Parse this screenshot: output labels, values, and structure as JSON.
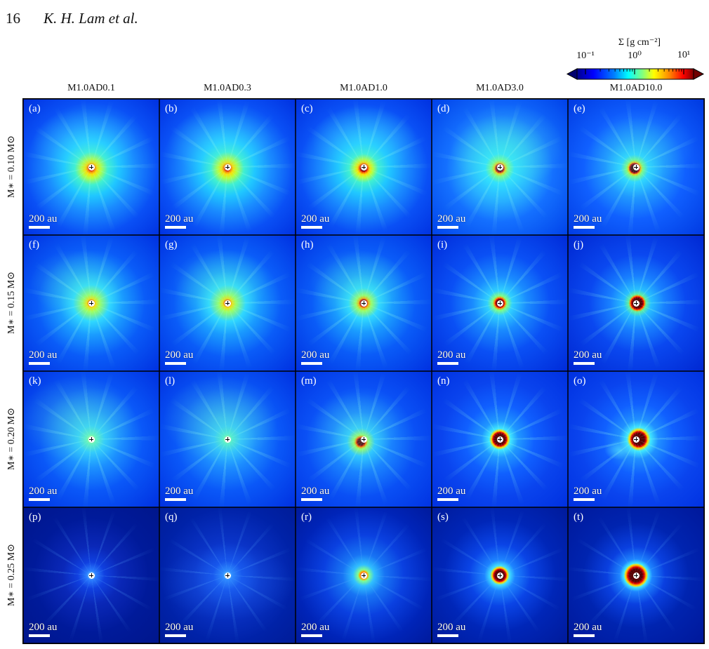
{
  "header": {
    "page_number": "16",
    "authors": "K. H. Lam et al."
  },
  "colorbar": {
    "label": "Σ [g cm⁻²]",
    "ticks": [
      "10⁻¹",
      "10⁰",
      "10¹"
    ],
    "scale": "log",
    "colormap": "jet",
    "colors": {
      "low_extend": "#000070",
      "high_extend": "#700000"
    }
  },
  "columns": [
    "M1.0AD0.1",
    "M1.0AD0.3",
    "M1.0AD1.0",
    "M1.0AD3.0",
    "M1.0AD10.0"
  ],
  "rows": [
    "M∗ = 0.10 M⊙",
    "M∗ = 0.15 M⊙",
    "M∗ = 0.20 M⊙",
    "M∗ = 0.25 M⊙"
  ],
  "panels": [
    {
      "label": "(a)",
      "scale": "200 au"
    },
    {
      "label": "(b)",
      "scale": "200 au"
    },
    {
      "label": "(c)",
      "scale": "200 au"
    },
    {
      "label": "(d)",
      "scale": "200 au"
    },
    {
      "label": "(e)",
      "scale": "200 au"
    },
    {
      "label": "(f)",
      "scale": "200 au"
    },
    {
      "label": "(g)",
      "scale": "200 au"
    },
    {
      "label": "(h)",
      "scale": "200 au"
    },
    {
      "label": "(i)",
      "scale": "200 au"
    },
    {
      "label": "(j)",
      "scale": "200 au"
    },
    {
      "label": "(k)",
      "scale": "200 au"
    },
    {
      "label": "(l)",
      "scale": "200 au"
    },
    {
      "label": "(m)",
      "scale": "200 au"
    },
    {
      "label": "(n)",
      "scale": "200 au"
    },
    {
      "label": "(o)",
      "scale": "200 au"
    },
    {
      "label": "(p)",
      "scale": "200 au"
    },
    {
      "label": "(q)",
      "scale": "200 au"
    },
    {
      "label": "(r)",
      "scale": "200 au"
    },
    {
      "label": "(s)",
      "scale": "200 au"
    },
    {
      "label": "(t)",
      "scale": "200 au"
    }
  ]
}
